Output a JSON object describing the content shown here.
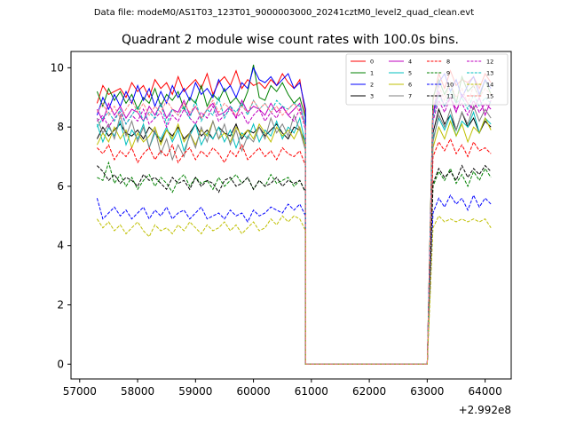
{
  "figure_title": "Data file: modeM0/AS1T03_123T01_9000003000_20241cztM0_level2_quad_clean.evt",
  "chart_data": {
    "type": "line",
    "title": "Quadrant 2 module wise count rates with 100.0s bins.",
    "xlabel": "",
    "ylabel": "",
    "x_offset_label": "+2.992e8",
    "xlim": [
      56850,
      64450
    ],
    "ylim": [
      -0.5,
      10.55
    ],
    "x_ticks": [
      57000,
      58000,
      59000,
      60000,
      61000,
      62000,
      63000,
      64000
    ],
    "y_ticks": [
      0,
      2,
      4,
      6,
      8,
      10
    ],
    "legend_position": "top-right",
    "x_segments": {
      "start": 57300,
      "step": 100,
      "gap_start": 60900,
      "gap_end": 63000,
      "end": 64100
    },
    "series": [
      {
        "name": "0",
        "color": "#ff0000",
        "dash": "solid",
        "values": [
          8.8,
          9.4,
          9.1,
          9.2,
          9.3,
          9.0,
          9.5,
          9.2,
          9.4,
          9.0,
          9.6,
          9.3,
          9.5,
          9.1,
          9.7,
          9.2,
          9.4,
          9.6,
          9.3,
          9.8,
          9.1,
          9.5,
          9.7,
          9.4,
          9.9,
          9.3,
          9.6,
          9.4,
          9.5,
          9.3,
          9.6,
          9.4,
          9.8,
          9.5,
          9.3,
          9.6,
          8.4
        ],
        "values2": [
          8.9,
          9.8,
          9.3,
          9.9,
          9.4,
          9.6,
          9.5,
          9.7,
          9.3,
          9.8,
          9.5,
          8.9
        ]
      },
      {
        "name": "1",
        "color": "#008000",
        "dash": "solid",
        "values": [
          9.2,
          8.7,
          9.3,
          8.9,
          9.2,
          8.8,
          9.1,
          8.6,
          9.0,
          8.8,
          9.3,
          8.7,
          9.1,
          8.9,
          9.2,
          8.6,
          9.0,
          8.8,
          9.4,
          8.7,
          9.1,
          8.9,
          9.3,
          8.8,
          9.0,
          8.7,
          9.2,
          10.1,
          9.0,
          8.9,
          9.4,
          9.2,
          9.5,
          9.1,
          8.8,
          9.0,
          8.3
        ],
        "values2": [
          9.0,
          9.6,
          9.1,
          9.5,
          8.8,
          9.7,
          9.2,
          9.4,
          9.0,
          9.6,
          9.1,
          8.7
        ]
      },
      {
        "name": "2",
        "color": "#0000ff",
        "dash": "solid",
        "values": [
          8.4,
          9.0,
          8.6,
          9.1,
          8.7,
          9.2,
          8.8,
          9.4,
          8.9,
          9.3,
          8.7,
          9.2,
          8.8,
          9.4,
          9.0,
          9.3,
          8.9,
          9.5,
          9.1,
          9.3,
          9.0,
          9.6,
          9.2,
          9.4,
          9.0,
          9.5,
          9.3,
          10.0,
          9.6,
          9.5,
          9.7,
          9.4,
          9.6,
          9.8,
          9.3,
          9.5,
          8.6
        ],
        "values2": [
          8.4,
          9.5,
          9.8,
          9.2,
          9.6,
          9.0,
          9.4,
          9.7,
          9.1,
          9.6,
          9.3,
          8.8
        ]
      },
      {
        "name": "3",
        "color": "#000000",
        "dash": "solid",
        "values": [
          7.6,
          8.0,
          7.7,
          7.9,
          8.1,
          7.8,
          7.7,
          7.9,
          7.6,
          8.0,
          7.8,
          7.5,
          7.9,
          7.7,
          8.0,
          7.6,
          7.8,
          8.1,
          7.7,
          7.9,
          7.6,
          8.0,
          7.8,
          7.7,
          8.1,
          7.6,
          7.9,
          7.8,
          8.0,
          7.7,
          7.9,
          8.1,
          7.8,
          7.6,
          8.0,
          7.9,
          7.5
        ],
        "values2": [
          7.8,
          8.6,
          8.1,
          8.4,
          7.9,
          8.5,
          8.0,
          8.3,
          7.8,
          8.2,
          8.0,
          7.6
        ]
      },
      {
        "name": "4",
        "color": "#bf00bf",
        "dash": "solid",
        "values": [
          8.6,
          8.2,
          8.8,
          8.4,
          8.7,
          8.3,
          8.6,
          8.5,
          8.2,
          8.7,
          8.4,
          8.8,
          8.3,
          8.6,
          8.5,
          8.9,
          8.4,
          8.7,
          8.3,
          8.6,
          8.8,
          8.4,
          8.5,
          8.7,
          8.3,
          8.9,
          8.5,
          8.7,
          8.6,
          8.4,
          8.8,
          8.5,
          8.7,
          8.4,
          8.6,
          8.8,
          8.0
        ],
        "values2": [
          8.4,
          9.2,
          8.7,
          9.0,
          8.5,
          9.1,
          8.8,
          8.6,
          9.0,
          8.4,
          8.9,
          8.2
        ]
      },
      {
        "name": "5",
        "color": "#00bfbf",
        "dash": "solid",
        "values": [
          8.1,
          7.5,
          8.0,
          7.7,
          8.2,
          7.4,
          7.9,
          7.6,
          8.1,
          7.3,
          7.8,
          7.6,
          8.0,
          7.5,
          7.9,
          7.2,
          7.7,
          8.1,
          7.4,
          7.8,
          7.6,
          8.0,
          7.5,
          7.9,
          7.3,
          7.8,
          7.6,
          8.1,
          7.5,
          7.9,
          7.7,
          8.2,
          7.6,
          8.0,
          7.8,
          8.3,
          7.4
        ],
        "values2": [
          7.6,
          8.3,
          7.9,
          8.4,
          7.7,
          8.2,
          8.0,
          8.5,
          7.8,
          8.3,
          8.1,
          7.5
        ]
      },
      {
        "name": "6",
        "color": "#bfbf00",
        "dash": "solid",
        "values": [
          7.4,
          7.8,
          7.5,
          8.0,
          7.6,
          7.9,
          7.3,
          7.8,
          7.5,
          7.7,
          8.0,
          7.4,
          7.9,
          7.6,
          8.1,
          7.5,
          7.8,
          7.4,
          7.9,
          7.7,
          8.2,
          7.6,
          7.8,
          7.5,
          8.0,
          7.7,
          7.9,
          7.6,
          8.1,
          7.8,
          7.5,
          8.0,
          7.7,
          7.9,
          7.6,
          8.0,
          7.3
        ],
        "values2": [
          7.3,
          8.0,
          7.6,
          8.2,
          7.7,
          8.1,
          7.5,
          8.0,
          7.8,
          8.3,
          7.9,
          7.2
        ]
      },
      {
        "name": "7",
        "color": "#808080",
        "dash": "solid",
        "values": [
          8.3,
          7.8,
          8.1,
          7.6,
          8.4,
          7.7,
          8.2,
          7.5,
          8.0,
          7.3,
          7.9,
          7.1,
          7.6,
          6.9,
          7.4,
          7.0,
          7.8,
          7.3,
          8.0,
          7.5,
          8.2,
          7.6,
          8.1,
          7.4,
          7.9,
          7.2,
          7.7,
          7.5,
          8.0,
          7.6,
          8.3,
          7.8,
          8.1,
          7.7,
          8.4,
          7.9,
          7.2
        ],
        "values2": [
          7.5,
          8.4,
          8.0,
          8.6,
          7.9,
          8.5,
          8.1,
          8.7,
          8.2,
          8.6,
          8.3,
          7.6
        ]
      },
      {
        "name": "8",
        "color": "#ff0000",
        "dash": "dashed",
        "values": [
          7.3,
          7.1,
          7.4,
          6.9,
          7.2,
          7.0,
          7.3,
          6.8,
          7.1,
          7.3,
          6.9,
          7.2,
          7.0,
          7.4,
          6.8,
          7.1,
          7.3,
          6.9,
          7.2,
          7.0,
          7.3,
          7.1,
          6.8,
          7.2,
          7.0,
          7.4,
          6.9,
          7.1,
          7.3,
          7.0,
          7.2,
          6.9,
          7.3,
          7.1,
          7.0,
          7.2,
          6.7
        ],
        "values2": [
          7.0,
          7.5,
          7.2,
          7.6,
          7.1,
          7.4,
          7.0,
          7.5,
          7.2,
          7.3,
          7.1,
          6.8
        ]
      },
      {
        "name": "9",
        "color": "#008000",
        "dash": "dashed",
        "values": [
          6.3,
          6.2,
          6.8,
          6.1,
          6.4,
          6.0,
          6.3,
          5.9,
          6.2,
          6.4,
          6.0,
          6.3,
          6.1,
          5.8,
          6.2,
          6.4,
          6.0,
          6.3,
          6.1,
          6.2,
          5.9,
          6.3,
          6.0,
          6.2,
          6.4,
          6.1,
          6.3,
          5.9,
          6.2,
          6.0,
          6.4,
          6.1,
          6.2,
          6.3,
          6.0,
          6.2,
          5.8
        ],
        "values2": [
          6.0,
          6.5,
          6.2,
          6.6,
          6.1,
          6.4,
          6.0,
          6.5,
          6.2,
          6.6,
          6.3,
          6.0
        ]
      },
      {
        "name": "10",
        "color": "#0000ff",
        "dash": "dashed",
        "values": [
          5.6,
          4.9,
          5.1,
          5.3,
          5.0,
          5.2,
          4.9,
          5.1,
          5.3,
          4.9,
          5.2,
          5.0,
          5.3,
          4.9,
          5.1,
          5.2,
          4.9,
          5.1,
          5.3,
          4.9,
          5.0,
          5.1,
          4.9,
          5.2,
          5.0,
          5.1,
          4.8,
          5.2,
          5.0,
          5.1,
          5.3,
          5.2,
          5.1,
          5.4,
          5.2,
          5.4,
          5.0
        ],
        "values2": [
          5.1,
          5.6,
          5.3,
          5.7,
          5.4,
          5.6,
          5.2,
          5.7,
          5.3,
          5.6,
          5.4,
          5.0
        ]
      },
      {
        "name": "11",
        "color": "#000000",
        "dash": "dashed",
        "values": [
          6.7,
          6.5,
          6.2,
          6.4,
          6.1,
          6.3,
          6.2,
          6.0,
          6.4,
          6.2,
          6.3,
          6.1,
          5.9,
          6.3,
          6.1,
          6.2,
          5.9,
          6.3,
          6.0,
          6.2,
          6.1,
          5.8,
          6.2,
          6.3,
          6.0,
          6.1,
          6.3,
          5.9,
          6.2,
          6.0,
          6.1,
          6.3,
          6.0,
          6.2,
          6.1,
          6.2,
          5.8
        ],
        "values2": [
          6.1,
          6.6,
          6.3,
          6.5,
          6.2,
          6.7,
          6.3,
          6.6,
          6.4,
          6.7,
          6.5,
          6.0
        ]
      },
      {
        "name": "12",
        "color": "#bf00bf",
        "dash": "dashed",
        "values": [
          8.2,
          8.4,
          8.0,
          8.3,
          8.5,
          8.1,
          8.4,
          8.2,
          8.6,
          8.1,
          8.3,
          8.5,
          8.0,
          8.4,
          8.2,
          8.6,
          8.3,
          8.1,
          8.5,
          8.3,
          8.7,
          8.2,
          8.4,
          8.6,
          8.3,
          8.5,
          8.1,
          8.4,
          8.6,
          8.2,
          8.5,
          8.3,
          8.7,
          8.4,
          8.2,
          8.6,
          7.9
        ],
        "values2": [
          8.2,
          8.9,
          8.5,
          9.0,
          8.6,
          8.8,
          8.4,
          8.9,
          8.5,
          8.8,
          8.6,
          8.1
        ]
      },
      {
        "name": "13",
        "color": "#00bfbf",
        "dash": "dashed",
        "values": [
          8.0,
          8.3,
          8.5,
          8.2,
          8.6,
          8.1,
          8.4,
          8.7,
          8.2,
          8.5,
          8.3,
          8.8,
          8.1,
          8.6,
          8.4,
          8.7,
          8.3,
          8.9,
          8.2,
          8.6,
          8.4,
          9.0,
          8.3,
          8.7,
          8.5,
          8.8,
          8.4,
          8.9,
          8.6,
          8.8,
          8.5,
          8.9,
          8.7,
          8.6,
          8.8,
          8.7,
          8.1
        ],
        "values2": [
          8.3,
          9.1,
          8.7,
          9.2,
          8.8,
          9.0,
          8.6,
          9.1,
          8.7,
          9.0,
          8.8,
          8.2
        ]
      },
      {
        "name": "14",
        "color": "#bfbf00",
        "dash": "dashed",
        "values": [
          4.9,
          4.6,
          4.8,
          4.5,
          4.7,
          4.4,
          4.6,
          4.8,
          4.5,
          4.3,
          4.7,
          4.5,
          4.6,
          4.4,
          4.7,
          4.5,
          4.8,
          4.6,
          4.4,
          4.7,
          4.5,
          4.6,
          4.8,
          4.5,
          4.7,
          4.4,
          4.6,
          4.8,
          4.5,
          4.6,
          4.9,
          4.7,
          5.0,
          4.8,
          5.0,
          4.9,
          4.5
        ],
        "values2": [
          4.6,
          5.0,
          4.8,
          4.9,
          4.8,
          4.9,
          4.8,
          4.9,
          4.8,
          4.9,
          4.6,
          4.4
        ]
      },
      {
        "name": "15",
        "color": "#ff8080",
        "dash": "dashed",
        "values": [
          8.5,
          8.8,
          8.4,
          8.7,
          8.3,
          8.6,
          8.9,
          8.5,
          8.8,
          8.4,
          8.7,
          8.5,
          8.9,
          8.6,
          8.4,
          8.8,
          8.5,
          8.7,
          8.3,
          8.6,
          8.9,
          8.5,
          8.8,
          8.6,
          8.4,
          8.7,
          8.5,
          8.9,
          8.6,
          8.8,
          8.5,
          8.7,
          8.4,
          8.6,
          8.8,
          8.5,
          8.0
        ],
        "values2": [
          8.6,
          9.4,
          8.9,
          9.5,
          9.0,
          9.3,
          8.8,
          9.4,
          9.0,
          9.3,
          9.1,
          8.5
        ]
      }
    ]
  }
}
